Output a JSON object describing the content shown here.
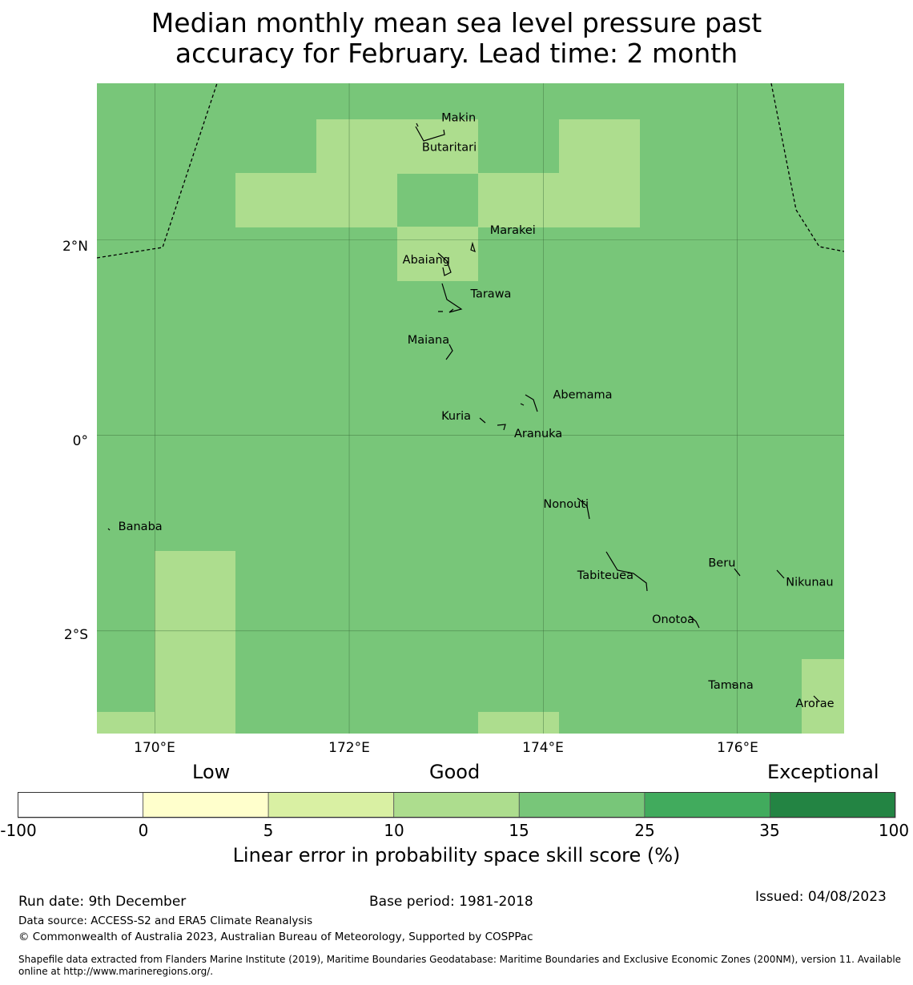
{
  "title_line1": "Median monthly mean sea level pressure past",
  "title_line2": "accuracy for February. Lead time: 2 month",
  "map": {
    "colors": {
      "good": "#78c679",
      "moderate": "#addd8e",
      "border": "#000000"
    },
    "lon_range": [
      169.4,
      177.1
    ],
    "lat_range": [
      -3.05,
      3.6
    ],
    "grid_lons": [
      170,
      172,
      174,
      176
    ],
    "grid_lats": [
      2,
      0,
      -2
    ],
    "lat_labels": [
      "2°N",
      "0°",
      "2°S"
    ],
    "lon_labels": [
      "170°E",
      "172°E",
      "174°E",
      "176°E"
    ],
    "places": [
      {
        "name": "Makin",
        "lon": 172.95,
        "lat": 3.25
      },
      {
        "name": "Butaritari",
        "lon": 172.75,
        "lat": 2.95
      },
      {
        "name": "Marakei",
        "lon": 173.45,
        "lat": 2.1
      },
      {
        "name": "Abaiang",
        "lon": 172.55,
        "lat": 1.8
      },
      {
        "name": "Tarawa",
        "lon": 173.25,
        "lat": 1.45
      },
      {
        "name": "Maiana",
        "lon": 172.6,
        "lat": 0.98
      },
      {
        "name": "Abemama",
        "lon": 174.1,
        "lat": 0.42
      },
      {
        "name": "Kuria",
        "lon": 172.95,
        "lat": 0.2
      },
      {
        "name": "Aranuka",
        "lon": 173.7,
        "lat": 0.02
      },
      {
        "name": "Nonouti",
        "lon": 174.0,
        "lat": -0.7
      },
      {
        "name": "Banaba",
        "lon": 169.62,
        "lat": -0.93
      },
      {
        "name": "Beru",
        "lon": 175.7,
        "lat": -1.3
      },
      {
        "name": "Tabiteuea",
        "lon": 174.35,
        "lat": -1.43
      },
      {
        "name": "Nikunau",
        "lon": 176.5,
        "lat": -1.5
      },
      {
        "name": "Onotoa",
        "lon": 175.12,
        "lat": -1.88
      },
      {
        "name": "Tamana",
        "lon": 175.7,
        "lat": -2.55
      },
      {
        "name": "Arorae",
        "lon": 176.6,
        "lat": -2.74
      }
    ]
  },
  "colorbar": {
    "categories": [
      "Low",
      "Good",
      "Exceptional"
    ],
    "bins": [
      {
        "color": "#ffffff"
      },
      {
        "color": "#ffffcc"
      },
      {
        "color": "#d9f0a3"
      },
      {
        "color": "#addd8e"
      },
      {
        "color": "#78c679"
      },
      {
        "color": "#41ab5d"
      },
      {
        "color": "#238443"
      }
    ],
    "ticks": [
      "-100",
      "0",
      "5",
      "10",
      "15",
      "25",
      "35",
      "100"
    ],
    "label": "Linear error in probability space skill score (%)"
  },
  "footer": {
    "run_date": "Run date: 9th December",
    "base_period": "Base period: 1981-2018",
    "issued": "Issued: 04/08/2023",
    "data_source": "Data source: ACCESS-S2 and ERA5 Climate Reanalysis",
    "copyright": "© Commonwealth of Australia 2023, Australian Bureau of Meteorology, Supported by COSPPac",
    "shapefile_line1": "Shapefile data extracted from Flanders Marine Institute (2019), Maritime Boundaries Geodatabase: Maritime Boundaries and Exclusive Economic Zones (200NM), version 11. Available",
    "shapefile_line2": "online at http://www.marineregions.org/."
  }
}
